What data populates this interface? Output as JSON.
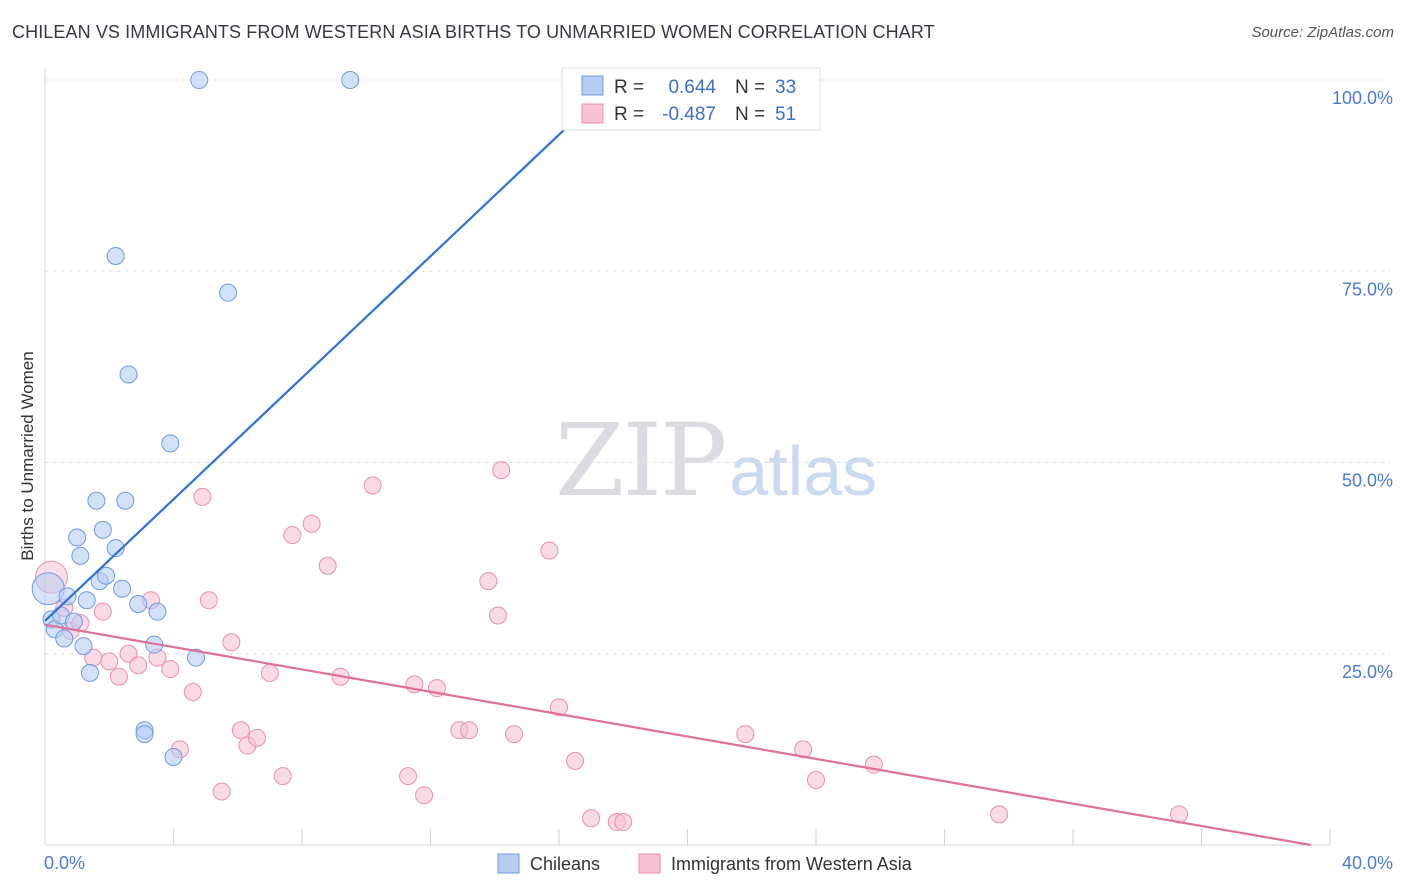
{
  "title": "CHILEAN VS IMMIGRANTS FROM WESTERN ASIA BIRTHS TO UNMARRIED WOMEN CORRELATION CHART",
  "source": "Source: ZipAtlas.com",
  "watermark": {
    "zip": "ZIP",
    "atlas": "atlas"
  },
  "colors": {
    "blue_fill": "#b6cdf2",
    "blue_stroke": "#6f9be0",
    "blue_line": "#2e72d6",
    "pink_fill": "#f7c3d4",
    "pink_stroke": "#e98fb0",
    "pink_line": "#e07099",
    "grid": "#dde0e6",
    "axis_text": "#4a7bd0"
  },
  "legend_top": [
    {
      "r_label": "R =",
      "r_value": "0.644",
      "n_label": "N =",
      "n_value": "33"
    },
    {
      "r_label": "R =",
      "r_value": "-0.487",
      "n_label": "N =",
      "n_value": "51"
    }
  ],
  "chart_data": {
    "type": "scatter",
    "title": "CHILEAN VS IMMIGRANTS FROM WESTERN ASIA BIRTHS TO UNMARRIED WOMEN CORRELATION CHART",
    "xlabel": "",
    "ylabel": "Births to Unmarried Women",
    "xlim": [
      0,
      40
    ],
    "ylim": [
      0,
      100
    ],
    "x_tick_labels": [
      "0.0%",
      "40.0%"
    ],
    "y_ticks": [
      25,
      50,
      75,
      100
    ],
    "y_tick_labels": [
      "25.0%",
      "50.0%",
      "75.0%",
      "100.0%"
    ],
    "grid": true,
    "legend_position": "bottom",
    "series": [
      {
        "name": "Chileans",
        "color": "#6f9be0",
        "points": [
          [
            0.1,
            33.5
          ],
          [
            0.2,
            29.5
          ],
          [
            0.3,
            28.2
          ],
          [
            0.5,
            30.0
          ],
          [
            0.6,
            27.0
          ],
          [
            0.7,
            32.5
          ],
          [
            1.0,
            40.2
          ],
          [
            1.1,
            37.8
          ],
          [
            1.2,
            26.0
          ],
          [
            1.3,
            32.0
          ],
          [
            1.4,
            22.5
          ],
          [
            1.6,
            45.0
          ],
          [
            1.7,
            34.5
          ],
          [
            1.8,
            41.2
          ],
          [
            1.9,
            35.2
          ],
          [
            2.2,
            38.8
          ],
          [
            2.2,
            77.0
          ],
          [
            2.4,
            33.5
          ],
          [
            2.5,
            45.0
          ],
          [
            2.6,
            61.5
          ],
          [
            2.9,
            31.5
          ],
          [
            3.1,
            15.0
          ],
          [
            3.1,
            14.5
          ],
          [
            3.4,
            26.2
          ],
          [
            3.5,
            30.5
          ],
          [
            3.9,
            52.5
          ],
          [
            4.0,
            11.5
          ],
          [
            4.7,
            24.5
          ],
          [
            4.8,
            100.0
          ],
          [
            5.7,
            72.2
          ],
          [
            9.5,
            100.0
          ],
          [
            17.4,
            100.0
          ],
          [
            0.9,
            29.2
          ]
        ],
        "trend": {
          "x": [
            0.0,
            17.8
          ],
          "y": [
            29.3,
            100.0
          ]
        }
      },
      {
        "name": "Immigrants from Western Asia",
        "color": "#e98fb0",
        "points": [
          [
            0.2,
            35.0
          ],
          [
            0.6,
            31.0
          ],
          [
            0.8,
            28.0
          ],
          [
            1.1,
            29.0
          ],
          [
            1.5,
            24.5
          ],
          [
            1.8,
            30.5
          ],
          [
            2.0,
            24.0
          ],
          [
            2.3,
            22.0
          ],
          [
            2.6,
            25.0
          ],
          [
            2.9,
            23.5
          ],
          [
            3.3,
            32.0
          ],
          [
            3.5,
            24.5
          ],
          [
            3.9,
            23.0
          ],
          [
            4.2,
            12.5
          ],
          [
            4.6,
            20.0
          ],
          [
            4.9,
            45.5
          ],
          [
            5.1,
            32.0
          ],
          [
            5.5,
            7.0
          ],
          [
            5.8,
            26.5
          ],
          [
            6.1,
            15.0
          ],
          [
            6.3,
            13.0
          ],
          [
            6.6,
            14.0
          ],
          [
            7.0,
            22.5
          ],
          [
            7.4,
            9.0
          ],
          [
            7.7,
            40.5
          ],
          [
            8.3,
            42.0
          ],
          [
            8.8,
            36.5
          ],
          [
            9.2,
            22.0
          ],
          [
            10.2,
            47.0
          ],
          [
            11.3,
            9.0
          ],
          [
            11.5,
            21.0
          ],
          [
            11.8,
            6.5
          ],
          [
            12.2,
            20.5
          ],
          [
            12.9,
            15.0
          ],
          [
            13.2,
            15.0
          ],
          [
            13.8,
            34.5
          ],
          [
            14.1,
            30.0
          ],
          [
            14.2,
            49.0
          ],
          [
            14.6,
            14.5
          ],
          [
            15.7,
            38.5
          ],
          [
            16.0,
            18.0
          ],
          [
            16.5,
            11.0
          ],
          [
            17.0,
            3.5
          ],
          [
            17.8,
            3.0
          ],
          [
            18.0,
            3.0
          ],
          [
            21.8,
            14.5
          ],
          [
            23.6,
            12.5
          ],
          [
            24.0,
            8.5
          ],
          [
            25.8,
            10.5
          ],
          [
            29.7,
            4.0
          ],
          [
            35.3,
            4.0
          ]
        ],
        "trend": {
          "x": [
            0.0,
            39.4
          ],
          "y": [
            28.8,
            0.0
          ]
        }
      }
    ]
  }
}
